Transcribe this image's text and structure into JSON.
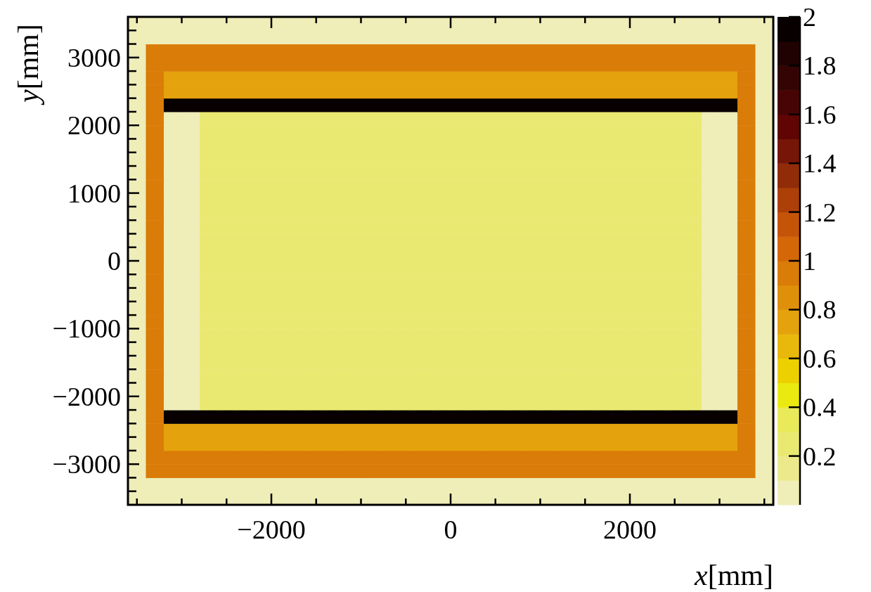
{
  "chart_data": {
    "type": "heatmap",
    "xlabel": "x[mm]",
    "ylabel": "y[mm]",
    "x": [
      -3500,
      -3300,
      -3100,
      -2900,
      -2700,
      -2500,
      -2300,
      -2100,
      -1900,
      -1700,
      -1500,
      -1300,
      -1100,
      -900,
      -700,
      -500,
      -300,
      -100,
      100,
      300,
      500,
      700,
      900,
      1100,
      1300,
      1500,
      1700,
      1900,
      2100,
      2300,
      2500,
      2700,
      2900,
      3100,
      3300,
      3500
    ],
    "y": [
      -3500,
      -3300,
      -3100,
      -2900,
      -2700,
      -2500,
      -2300,
      -2100,
      -1900,
      -1700,
      -1500,
      -1300,
      -1100,
      -900,
      -700,
      -500,
      -300,
      -100,
      100,
      300,
      500,
      700,
      900,
      1100,
      1300,
      1500,
      1700,
      1900,
      2100,
      2300,
      2500,
      2700,
      2900,
      3100,
      3300,
      3500
    ],
    "xlim": [
      -3600,
      3600
    ],
    "xticks": [
      {
        "value": -3500,
        "label": null
      },
      {
        "value": -3000,
        "label": null
      },
      {
        "value": -2500,
        "label": null
      },
      {
        "value": -2000,
        "label": "−2000"
      },
      {
        "value": -1500,
        "label": null
      },
      {
        "value": -1000,
        "label": null
      },
      {
        "value": -500,
        "label": null
      },
      0,
      {
        "value": 500,
        "label": null
      },
      {
        "value": 1000,
        "label": null
      },
      {
        "value": 1500,
        "label": null
      },
      2000,
      {
        "value": 2500,
        "label": null
      },
      {
        "value": 3000,
        "label": null
      },
      {
        "value": 3500,
        "label": null
      }
    ],
    "ylim": [
      -3600,
      3600
    ],
    "yticks": [
      {
        "value": -3400,
        "label": null
      },
      {
        "value": -3200,
        "label": null
      },
      {
        "value": -3000,
        "label": "−3000"
      },
      {
        "value": -2800,
        "label": null
      },
      {
        "value": -2600,
        "label": null
      },
      {
        "value": -2400,
        "label": null
      },
      {
        "value": -2200,
        "label": null
      },
      {
        "value": -2000,
        "label": "−2000"
      },
      {
        "value": -1800,
        "label": null
      },
      {
        "value": -1600,
        "label": null
      },
      {
        "value": -1400,
        "label": null
      },
      {
        "value": -1200,
        "label": null
      },
      {
        "value": -1000,
        "label": "−1000"
      },
      {
        "value": -800,
        "label": null
      },
      {
        "value": -600,
        "label": null
      },
      {
        "value": -400,
        "label": null
      },
      {
        "value": -200,
        "label": null
      },
      0,
      {
        "value": 200,
        "label": null
      },
      {
        "value": 400,
        "label": null
      },
      {
        "value": 600,
        "label": null
      },
      {
        "value": 800,
        "label": null
      },
      1000,
      {
        "value": 1200,
        "label": null
      },
      {
        "value": 1400,
        "label": null
      },
      {
        "value": 1600,
        "label": null
      },
      {
        "value": 1800,
        "label": null
      },
      2000,
      {
        "value": 2200,
        "label": null
      },
      {
        "value": 2400,
        "label": null
      },
      {
        "value": 2600,
        "label": null
      },
      {
        "value": 2800,
        "label": null
      },
      3000,
      {
        "value": 3200,
        "label": null
      },
      {
        "value": 3400,
        "label": null
      }
    ],
    "clim": [
      0,
      2
    ],
    "cticks": [
      0.2,
      0.4,
      0.6,
      0.8,
      1,
      1.2,
      1.4,
      1.6,
      1.8,
      2
    ],
    "cells": [
      [
        0.05,
        0.05,
        0.05,
        0.05,
        0.05,
        0.05,
        0.05,
        0.05,
        0.05,
        0.05,
        0.05,
        0.05,
        0.05,
        0.05,
        0.05,
        0.05,
        0.05,
        0.05,
        0.05,
        0.05,
        0.05,
        0.05,
        0.05,
        0.05,
        0.05,
        0.05,
        0.05,
        0.05,
        0.05,
        0.05,
        0.05,
        0.05,
        0.05,
        0.05,
        0.05,
        0.05
      ],
      [
        0.05,
        0.05,
        0.05,
        0.05,
        0.05,
        0.05,
        0.05,
        0.05,
        0.05,
        0.05,
        0.05,
        0.05,
        0.05,
        0.05,
        0.05,
        0.05,
        0.05,
        0.05,
        0.05,
        0.05,
        0.05,
        0.05,
        0.05,
        0.05,
        0.05,
        0.05,
        0.05,
        0.05,
        0.05,
        0.05,
        0.05,
        0.05,
        0.05,
        0.05,
        0.05,
        0.05
      ],
      [
        0.05,
        0.95,
        0.95,
        0.95,
        0.95,
        0.95,
        0.95,
        0.95,
        0.95,
        0.95,
        0.95,
        0.95,
        0.95,
        0.95,
        0.95,
        0.95,
        0.95,
        0.95,
        0.95,
        0.95,
        0.95,
        0.95,
        0.95,
        0.95,
        0.95,
        0.95,
        0.95,
        0.95,
        0.95,
        0.95,
        0.95,
        0.95,
        0.95,
        0.95,
        0.95,
        0.05
      ],
      [
        0.05,
        0.95,
        0.95,
        0.95,
        0.95,
        0.95,
        0.95,
        0.95,
        0.95,
        0.95,
        0.95,
        0.95,
        0.95,
        0.95,
        0.95,
        0.95,
        0.95,
        0.95,
        0.95,
        0.95,
        0.95,
        0.95,
        0.95,
        0.95,
        0.95,
        0.95,
        0.95,
        0.95,
        0.95,
        0.95,
        0.95,
        0.95,
        0.95,
        0.95,
        0.95,
        0.05
      ],
      [
        0.05,
        0.95,
        0.75,
        0.75,
        0.75,
        0.75,
        0.75,
        0.75,
        0.75,
        0.75,
        0.75,
        0.75,
        0.75,
        0.75,
        0.75,
        0.75,
        0.75,
        0.75,
        0.75,
        0.75,
        0.75,
        0.75,
        0.75,
        0.75,
        0.75,
        0.75,
        0.75,
        0.75,
        0.75,
        0.75,
        0.75,
        0.75,
        0.75,
        0.75,
        0.95,
        0.05
      ],
      [
        0.05,
        0.95,
        0.75,
        0.75,
        0.75,
        0.75,
        0.75,
        0.75,
        0.75,
        0.75,
        0.75,
        0.75,
        0.75,
        0.75,
        0.75,
        0.75,
        0.75,
        0.75,
        0.75,
        0.75,
        0.75,
        0.75,
        0.75,
        0.75,
        0.75,
        0.75,
        0.75,
        0.75,
        0.75,
        0.75,
        0.75,
        0.75,
        0.75,
        0.75,
        0.95,
        0.05
      ],
      [
        0.05,
        0.95,
        1.95,
        1.95,
        1.95,
        1.95,
        1.95,
        1.95,
        1.95,
        1.95,
        1.95,
        1.95,
        1.95,
        1.95,
        1.95,
        1.95,
        1.95,
        1.95,
        1.95,
        1.95,
        1.95,
        1.95,
        1.95,
        1.95,
        1.95,
        1.95,
        1.95,
        1.95,
        1.95,
        1.95,
        1.95,
        1.95,
        1.95,
        1.95,
        0.95,
        0.05
      ],
      [
        0.05,
        0.95,
        0.05,
        0.05,
        0.25,
        0.25,
        0.25,
        0.25,
        0.25,
        0.25,
        0.25,
        0.25,
        0.25,
        0.25,
        0.25,
        0.25,
        0.25,
        0.25,
        0.25,
        0.25,
        0.25,
        0.25,
        0.25,
        0.25,
        0.25,
        0.25,
        0.25,
        0.25,
        0.25,
        0.25,
        0.25,
        0.25,
        0.05,
        0.05,
        0.95,
        0.05
      ],
      [
        0.05,
        0.95,
        0.05,
        0.05,
        0.25,
        0.25,
        0.25,
        0.25,
        0.25,
        0.25,
        0.25,
        0.25,
        0.25,
        0.25,
        0.25,
        0.25,
        0.25,
        0.25,
        0.25,
        0.25,
        0.25,
        0.25,
        0.25,
        0.25,
        0.25,
        0.25,
        0.25,
        0.25,
        0.25,
        0.25,
        0.25,
        0.25,
        0.05,
        0.05,
        0.95,
        0.05
      ],
      [
        0.05,
        0.95,
        0.05,
        0.05,
        0.25,
        0.25,
        0.25,
        0.25,
        0.25,
        0.25,
        0.25,
        0.25,
        0.25,
        0.25,
        0.25,
        0.25,
        0.25,
        0.25,
        0.25,
        0.25,
        0.25,
        0.25,
        0.25,
        0.25,
        0.25,
        0.25,
        0.25,
        0.25,
        0.25,
        0.25,
        0.25,
        0.25,
        0.05,
        0.05,
        0.95,
        0.05
      ],
      [
        0.05,
        0.95,
        0.05,
        0.05,
        0.25,
        0.25,
        0.25,
        0.25,
        0.25,
        0.25,
        0.25,
        0.25,
        0.25,
        0.25,
        0.25,
        0.25,
        0.25,
        0.25,
        0.25,
        0.25,
        0.25,
        0.25,
        0.25,
        0.25,
        0.25,
        0.25,
        0.25,
        0.25,
        0.25,
        0.25,
        0.25,
        0.25,
        0.05,
        0.05,
        0.95,
        0.05
      ],
      [
        0.05,
        0.95,
        0.05,
        0.05,
        0.25,
        0.25,
        0.25,
        0.25,
        0.25,
        0.25,
        0.25,
        0.25,
        0.25,
        0.25,
        0.25,
        0.25,
        0.25,
        0.25,
        0.25,
        0.25,
        0.25,
        0.25,
        0.25,
        0.25,
        0.25,
        0.25,
        0.25,
        0.25,
        0.25,
        0.25,
        0.25,
        0.25,
        0.05,
        0.05,
        0.95,
        0.05
      ],
      [
        0.05,
        0.95,
        0.05,
        0.05,
        0.25,
        0.25,
        0.25,
        0.25,
        0.25,
        0.25,
        0.25,
        0.25,
        0.25,
        0.25,
        0.25,
        0.25,
        0.25,
        0.25,
        0.25,
        0.25,
        0.25,
        0.25,
        0.25,
        0.25,
        0.25,
        0.25,
        0.25,
        0.25,
        0.25,
        0.25,
        0.25,
        0.25,
        0.05,
        0.05,
        0.95,
        0.05
      ],
      [
        0.05,
        0.95,
        0.05,
        0.05,
        0.25,
        0.25,
        0.25,
        0.25,
        0.25,
        0.25,
        0.25,
        0.25,
        0.25,
        0.25,
        0.25,
        0.25,
        0.25,
        0.25,
        0.25,
        0.25,
        0.25,
        0.25,
        0.25,
        0.25,
        0.25,
        0.25,
        0.25,
        0.25,
        0.25,
        0.25,
        0.25,
        0.25,
        0.05,
        0.05,
        0.95,
        0.05
      ],
      [
        0.05,
        0.95,
        0.05,
        0.05,
        0.25,
        0.25,
        0.25,
        0.25,
        0.25,
        0.25,
        0.25,
        0.25,
        0.25,
        0.25,
        0.25,
        0.25,
        0.25,
        0.25,
        0.25,
        0.25,
        0.25,
        0.25,
        0.25,
        0.25,
        0.25,
        0.25,
        0.25,
        0.25,
        0.25,
        0.25,
        0.25,
        0.25,
        0.05,
        0.05,
        0.95,
        0.05
      ],
      [
        0.05,
        0.95,
        0.05,
        0.05,
        0.25,
        0.25,
        0.25,
        0.25,
        0.25,
        0.25,
        0.25,
        0.25,
        0.25,
        0.25,
        0.25,
        0.25,
        0.25,
        0.25,
        0.25,
        0.25,
        0.25,
        0.25,
        0.25,
        0.25,
        0.25,
        0.25,
        0.25,
        0.25,
        0.25,
        0.25,
        0.25,
        0.25,
        0.05,
        0.05,
        0.95,
        0.05
      ],
      [
        0.05,
        0.95,
        0.05,
        0.05,
        0.25,
        0.25,
        0.25,
        0.25,
        0.25,
        0.25,
        0.25,
        0.25,
        0.25,
        0.25,
        0.25,
        0.25,
        0.25,
        0.25,
        0.25,
        0.25,
        0.25,
        0.25,
        0.25,
        0.25,
        0.25,
        0.25,
        0.25,
        0.25,
        0.25,
        0.25,
        0.25,
        0.25,
        0.05,
        0.05,
        0.95,
        0.05
      ],
      [
        0.05,
        0.95,
        0.05,
        0.05,
        0.25,
        0.25,
        0.25,
        0.25,
        0.25,
        0.25,
        0.25,
        0.25,
        0.25,
        0.25,
        0.25,
        0.25,
        0.25,
        0.25,
        0.25,
        0.25,
        0.25,
        0.25,
        0.25,
        0.25,
        0.25,
        0.25,
        0.25,
        0.25,
        0.25,
        0.25,
        0.25,
        0.25,
        0.05,
        0.05,
        0.95,
        0.05
      ],
      [
        0.05,
        0.95,
        0.05,
        0.05,
        0.25,
        0.25,
        0.25,
        0.25,
        0.25,
        0.25,
        0.25,
        0.25,
        0.25,
        0.25,
        0.25,
        0.25,
        0.25,
        0.25,
        0.25,
        0.25,
        0.25,
        0.25,
        0.25,
        0.25,
        0.25,
        0.25,
        0.25,
        0.25,
        0.25,
        0.25,
        0.25,
        0.25,
        0.05,
        0.05,
        0.95,
        0.05
      ],
      [
        0.05,
        0.95,
        0.05,
        0.05,
        0.25,
        0.25,
        0.25,
        0.25,
        0.25,
        0.25,
        0.25,
        0.25,
        0.25,
        0.25,
        0.25,
        0.25,
        0.25,
        0.25,
        0.25,
        0.25,
        0.25,
        0.25,
        0.25,
        0.25,
        0.25,
        0.25,
        0.25,
        0.25,
        0.25,
        0.25,
        0.25,
        0.25,
        0.05,
        0.05,
        0.95,
        0.05
      ],
      [
        0.05,
        0.95,
        0.05,
        0.05,
        0.25,
        0.25,
        0.25,
        0.25,
        0.25,
        0.25,
        0.25,
        0.25,
        0.25,
        0.25,
        0.25,
        0.25,
        0.25,
        0.25,
        0.25,
        0.25,
        0.25,
        0.25,
        0.25,
        0.25,
        0.25,
        0.25,
        0.25,
        0.25,
        0.25,
        0.25,
        0.25,
        0.25,
        0.05,
        0.05,
        0.95,
        0.05
      ],
      [
        0.05,
        0.95,
        0.05,
        0.05,
        0.25,
        0.25,
        0.25,
        0.25,
        0.25,
        0.25,
        0.25,
        0.25,
        0.25,
        0.25,
        0.25,
        0.25,
        0.25,
        0.25,
        0.25,
        0.25,
        0.25,
        0.25,
        0.25,
        0.25,
        0.25,
        0.25,
        0.25,
        0.25,
        0.25,
        0.25,
        0.25,
        0.25,
        0.05,
        0.05,
        0.95,
        0.05
      ],
      [
        0.05,
        0.95,
        0.05,
        0.05,
        0.25,
        0.25,
        0.25,
        0.25,
        0.25,
        0.25,
        0.25,
        0.25,
        0.25,
        0.25,
        0.25,
        0.25,
        0.25,
        0.25,
        0.25,
        0.25,
        0.25,
        0.25,
        0.25,
        0.25,
        0.25,
        0.25,
        0.25,
        0.25,
        0.25,
        0.25,
        0.25,
        0.25,
        0.05,
        0.05,
        0.95,
        0.05
      ],
      [
        0.05,
        0.95,
        0.05,
        0.05,
        0.25,
        0.25,
        0.25,
        0.25,
        0.25,
        0.25,
        0.25,
        0.25,
        0.25,
        0.25,
        0.25,
        0.25,
        0.25,
        0.25,
        0.25,
        0.25,
        0.25,
        0.25,
        0.25,
        0.25,
        0.25,
        0.25,
        0.25,
        0.25,
        0.25,
        0.25,
        0.25,
        0.25,
        0.05,
        0.05,
        0.95,
        0.05
      ],
      [
        0.05,
        0.95,
        0.05,
        0.05,
        0.25,
        0.25,
        0.25,
        0.25,
        0.25,
        0.25,
        0.25,
        0.25,
        0.25,
        0.25,
        0.25,
        0.25,
        0.25,
        0.25,
        0.25,
        0.25,
        0.25,
        0.25,
        0.25,
        0.25,
        0.25,
        0.25,
        0.25,
        0.25,
        0.25,
        0.25,
        0.25,
        0.25,
        0.05,
        0.05,
        0.95,
        0.05
      ],
      [
        0.05,
        0.95,
        0.05,
        0.05,
        0.25,
        0.25,
        0.25,
        0.25,
        0.25,
        0.25,
        0.25,
        0.25,
        0.25,
        0.25,
        0.25,
        0.25,
        0.25,
        0.25,
        0.25,
        0.25,
        0.25,
        0.25,
        0.25,
        0.25,
        0.25,
        0.25,
        0.25,
        0.25,
        0.25,
        0.25,
        0.25,
        0.25,
        0.05,
        0.05,
        0.95,
        0.05
      ],
      [
        0.05,
        0.95,
        0.05,
        0.05,
        0.25,
        0.25,
        0.25,
        0.25,
        0.25,
        0.25,
        0.25,
        0.25,
        0.25,
        0.25,
        0.25,
        0.25,
        0.25,
        0.25,
        0.25,
        0.25,
        0.25,
        0.25,
        0.25,
        0.25,
        0.25,
        0.25,
        0.25,
        0.25,
        0.25,
        0.25,
        0.25,
        0.25,
        0.05,
        0.05,
        0.95,
        0.05
      ],
      [
        0.05,
        0.95,
        0.05,
        0.05,
        0.25,
        0.25,
        0.25,
        0.25,
        0.25,
        0.25,
        0.25,
        0.25,
        0.25,
        0.25,
        0.25,
        0.25,
        0.25,
        0.25,
        0.25,
        0.25,
        0.25,
        0.25,
        0.25,
        0.25,
        0.25,
        0.25,
        0.25,
        0.25,
        0.25,
        0.25,
        0.25,
        0.25,
        0.05,
        0.05,
        0.95,
        0.05
      ],
      [
        0.05,
        0.95,
        0.05,
        0.05,
        0.25,
        0.25,
        0.25,
        0.25,
        0.25,
        0.25,
        0.25,
        0.25,
        0.25,
        0.25,
        0.25,
        0.25,
        0.25,
        0.25,
        0.25,
        0.25,
        0.25,
        0.25,
        0.25,
        0.25,
        0.25,
        0.25,
        0.25,
        0.25,
        0.25,
        0.25,
        0.25,
        0.25,
        0.05,
        0.05,
        0.95,
        0.05
      ],
      [
        0.05,
        0.95,
        1.95,
        1.95,
        1.95,
        1.95,
        1.95,
        1.95,
        1.95,
        1.95,
        1.95,
        1.95,
        1.95,
        1.95,
        1.95,
        1.95,
        1.95,
        1.95,
        1.95,
        1.95,
        1.95,
        1.95,
        1.95,
        1.95,
        1.95,
        1.95,
        1.95,
        1.95,
        1.95,
        1.95,
        1.95,
        1.95,
        1.95,
        1.95,
        0.95,
        0.05
      ],
      [
        0.05,
        0.95,
        0.75,
        0.75,
        0.75,
        0.75,
        0.75,
        0.75,
        0.75,
        0.75,
        0.75,
        0.75,
        0.75,
        0.75,
        0.75,
        0.75,
        0.75,
        0.75,
        0.75,
        0.75,
        0.75,
        0.75,
        0.75,
        0.75,
        0.75,
        0.75,
        0.75,
        0.75,
        0.75,
        0.75,
        0.75,
        0.75,
        0.75,
        0.75,
        0.95,
        0.05
      ],
      [
        0.05,
        0.95,
        0.75,
        0.75,
        0.75,
        0.75,
        0.75,
        0.75,
        0.75,
        0.75,
        0.75,
        0.75,
        0.75,
        0.75,
        0.75,
        0.75,
        0.75,
        0.75,
        0.75,
        0.75,
        0.75,
        0.75,
        0.75,
        0.75,
        0.75,
        0.75,
        0.75,
        0.75,
        0.75,
        0.75,
        0.75,
        0.75,
        0.75,
        0.75,
        0.95,
        0.05
      ],
      [
        0.05,
        0.95,
        0.95,
        0.95,
        0.95,
        0.95,
        0.95,
        0.95,
        0.95,
        0.95,
        0.95,
        0.95,
        0.95,
        0.95,
        0.95,
        0.95,
        0.95,
        0.95,
        0.95,
        0.95,
        0.95,
        0.95,
        0.95,
        0.95,
        0.95,
        0.95,
        0.95,
        0.95,
        0.95,
        0.95,
        0.95,
        0.95,
        0.95,
        0.95,
        0.95,
        0.05
      ],
      [
        0.05,
        0.95,
        0.95,
        0.95,
        0.95,
        0.95,
        0.95,
        0.95,
        0.95,
        0.95,
        0.95,
        0.95,
        0.95,
        0.95,
        0.95,
        0.95,
        0.95,
        0.95,
        0.95,
        0.95,
        0.95,
        0.95,
        0.95,
        0.95,
        0.95,
        0.95,
        0.95,
        0.95,
        0.95,
        0.95,
        0.95,
        0.95,
        0.95,
        0.95,
        0.95,
        0.05
      ],
      [
        0.05,
        0.05,
        0.05,
        0.05,
        0.05,
        0.05,
        0.05,
        0.05,
        0.05,
        0.05,
        0.05,
        0.05,
        0.05,
        0.05,
        0.05,
        0.05,
        0.05,
        0.05,
        0.05,
        0.05,
        0.05,
        0.05,
        0.05,
        0.05,
        0.05,
        0.05,
        0.05,
        0.05,
        0.05,
        0.05,
        0.05,
        0.05,
        0.05,
        0.05,
        0.05,
        0.05
      ],
      [
        0.05,
        0.05,
        0.05,
        0.05,
        0.05,
        0.05,
        0.05,
        0.05,
        0.05,
        0.05,
        0.05,
        0.05,
        0.05,
        0.05,
        0.05,
        0.05,
        0.05,
        0.05,
        0.05,
        0.05,
        0.05,
        0.05,
        0.05,
        0.05,
        0.05,
        0.05,
        0.05,
        0.05,
        0.05,
        0.05,
        0.05,
        0.05,
        0.05,
        0.05,
        0.05,
        0.05
      ]
    ]
  }
}
